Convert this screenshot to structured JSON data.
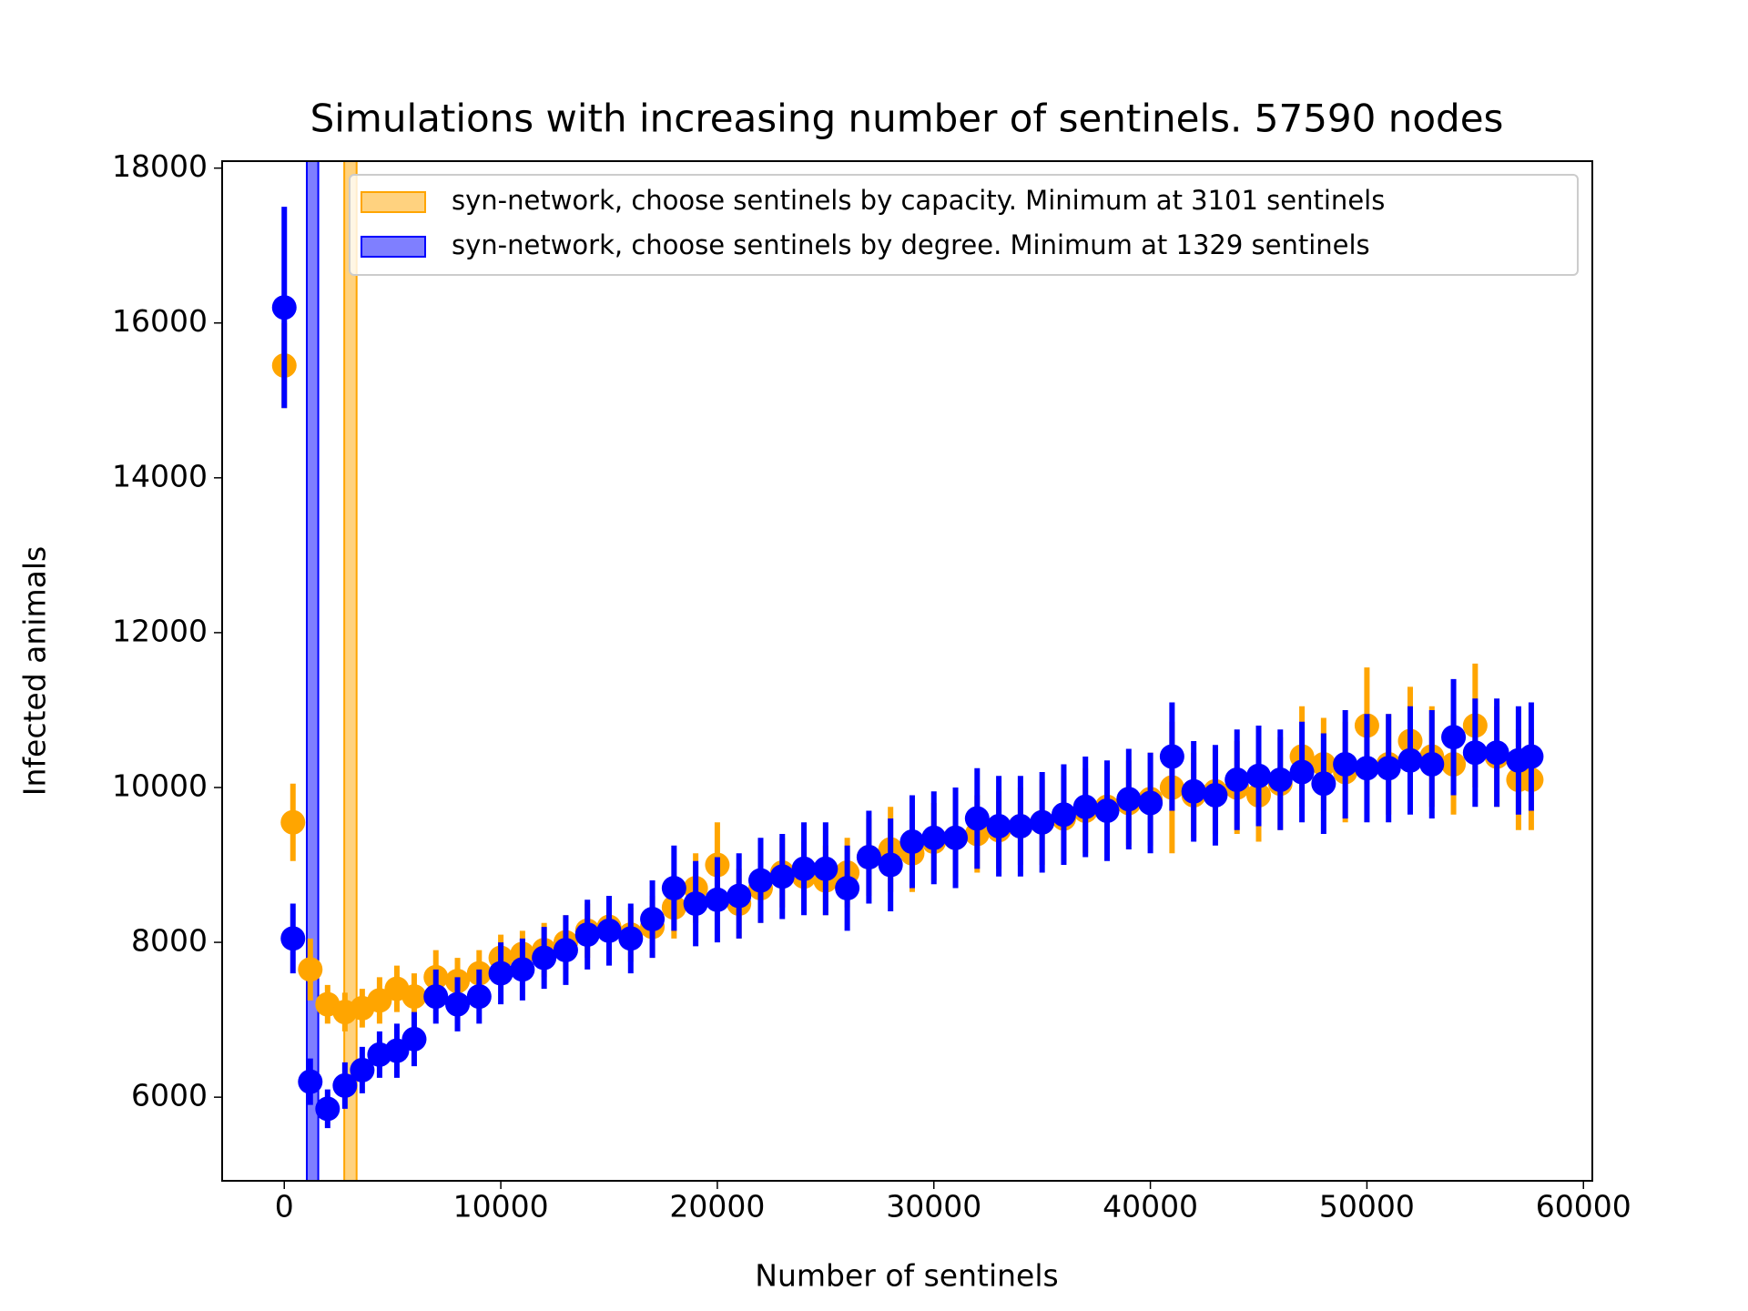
{
  "chart_data": {
    "type": "scatter",
    "title": "Simulations with increasing number of sentinels. 57590 nodes",
    "xlabel": "Number of sentinels",
    "ylabel": "Infected animals",
    "xlim": [
      -2870,
      60410
    ],
    "ylim": [
      4920,
      18090
    ],
    "xticks": [
      0,
      10000,
      20000,
      30000,
      40000,
      50000,
      60000
    ],
    "yticks": [
      6000,
      8000,
      10000,
      12000,
      14000,
      16000,
      18000
    ],
    "legend": "upper right",
    "x": [
      0,
      400,
      1200,
      2000,
      2800,
      3600,
      4400,
      5200,
      6000,
      7000,
      8000,
      9000,
      10000,
      11000,
      12000,
      13000,
      14000,
      15000,
      16000,
      17000,
      18000,
      19000,
      20000,
      21000,
      22000,
      23000,
      24000,
      25000,
      26000,
      27000,
      28000,
      29000,
      30000,
      31000,
      32000,
      33000,
      34000,
      35000,
      36000,
      37000,
      38000,
      39000,
      40000,
      41000,
      42000,
      43000,
      44000,
      45000,
      46000,
      47000,
      48000,
      49000,
      50000,
      51000,
      52000,
      53000,
      54000,
      55000,
      56000,
      57000,
      57590
    ],
    "series": [
      {
        "name": "syn-network, choose sentinels by capacity. Minimum at 3101 sentinels",
        "color": "#ffa500",
        "span": [
          2770,
          3340
        ],
        "values": [
          15450,
          9550,
          7650,
          7200,
          7100,
          7150,
          7250,
          7400,
          7300,
          7550,
          7500,
          7600,
          7800,
          7850,
          7900,
          8000,
          8150,
          8200,
          8100,
          8200,
          8450,
          8700,
          9000,
          8500,
          8700,
          8900,
          8850,
          8800,
          8900,
          9100,
          9200,
          9150,
          9300,
          9350,
          9400,
          9450,
          9500,
          9550,
          9600,
          9700,
          9750,
          9800,
          9850,
          10000,
          9900,
          9950,
          10000,
          9900,
          10050,
          10400,
          10300,
          10200,
          10800,
          10300,
          10600,
          10400,
          10300,
          10800,
          10400,
          10100,
          10100
        ],
        "errors": [
          550,
          500,
          400,
          250,
          250,
          250,
          300,
          300,
          300,
          350,
          300,
          300,
          300,
          300,
          350,
          350,
          350,
          350,
          350,
          400,
          400,
          450,
          550,
          450,
          450,
          450,
          450,
          450,
          450,
          500,
          550,
          500,
          500,
          500,
          500,
          500,
          500,
          550,
          550,
          550,
          550,
          550,
          600,
          850,
          550,
          550,
          600,
          600,
          600,
          650,
          600,
          650,
          750,
          650,
          700,
          650,
          650,
          800,
          650,
          650,
          650
        ]
      },
      {
        "name": "syn-network, choose sentinels by degree. Minimum at 1329 sentinels",
        "color": "#0000ff",
        "span": [
          1040,
          1570
        ],
        "values": [
          16200,
          8050,
          6200,
          5850,
          6150,
          6350,
          6550,
          6600,
          6750,
          7300,
          7200,
          7300,
          7600,
          7650,
          7800,
          7900,
          8100,
          8150,
          8050,
          8300,
          8700,
          8500,
          8550,
          8600,
          8800,
          8850,
          8950,
          8950,
          8700,
          9100,
          9000,
          9300,
          9350,
          9350,
          9600,
          9500,
          9500,
          9550,
          9650,
          9750,
          9700,
          9850,
          9800,
          10400,
          9950,
          9900,
          10100,
          10150,
          10100,
          10200,
          10050,
          10300,
          10250,
          10250,
          10350,
          10300,
          10650,
          10450,
          10450,
          10350,
          10400
        ],
        "errors": [
          1300,
          450,
          300,
          250,
          300,
          300,
          300,
          350,
          350,
          350,
          350,
          350,
          400,
          400,
          400,
          450,
          450,
          450,
          450,
          500,
          550,
          550,
          550,
          550,
          550,
          550,
          600,
          600,
          550,
          600,
          600,
          600,
          600,
          650,
          650,
          650,
          650,
          650,
          650,
          650,
          650,
          650,
          650,
          700,
          650,
          650,
          650,
          650,
          650,
          650,
          650,
          700,
          700,
          700,
          700,
          700,
          750,
          700,
          700,
          700,
          700
        ]
      }
    ]
  }
}
